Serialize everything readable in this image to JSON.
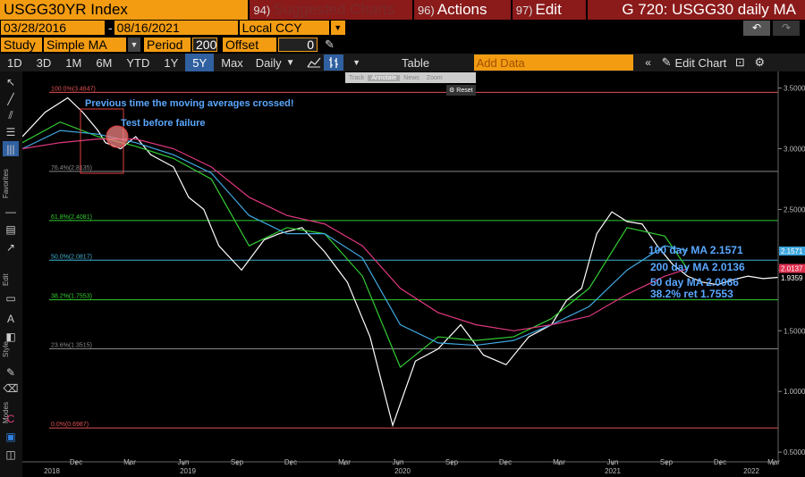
{
  "header": {
    "ticker": "USGG30YR Index",
    "suggested_num": "94)",
    "suggested_label": "Suggested Charts",
    "actions_num": "96)",
    "actions_label": "Actions",
    "edit_num": "97)",
    "edit_label": "Edit",
    "chart_title": "G 720: USGG30 daily MA"
  },
  "dates": {
    "start": "03/28/2016",
    "end": "08/16/2021",
    "currency": "Local CCY"
  },
  "study": {
    "label": "Study",
    "value": "Simple MA",
    "period_label": "Period",
    "period_value": "200",
    "offset_label": "Offset",
    "offset_value": "0"
  },
  "toolbar": {
    "ranges": [
      "1D",
      "3D",
      "1M",
      "6M",
      "YTD",
      "1Y",
      "5Y",
      "Max"
    ],
    "selected_range": "5Y",
    "frequency": "Daily",
    "table_label": "Table",
    "add_data_placeholder": "Add Data",
    "edit_chart_label": "Edit Chart"
  },
  "popup": {
    "track": "Track",
    "annotate": "Annotate",
    "news": "News",
    "zoom": "Zoom",
    "reset": "Reset"
  },
  "sidebar": {
    "favorites": "Favorites",
    "edit": "Edit",
    "style": "Style",
    "modes": "Modes"
  },
  "chart_data": {
    "type": "line",
    "x_tick_labels": [
      "Dec",
      "Mar",
      "Jun",
      "Sep",
      "Dec",
      "Mar",
      "Jun",
      "Sep",
      "Dec",
      "Mar",
      "Jun",
      "Sep",
      "Dec",
      "Mar"
    ],
    "year_labels": [
      "2018",
      "2019",
      "2020",
      "2021",
      "2022"
    ],
    "y_tick_labels": [
      "3.5000",
      "3.0000",
      "2.5000",
      "2.0000",
      "1.5000",
      "1.0000",
      "0.5000"
    ],
    "ylim": [
      0.42,
      3.6
    ],
    "fib_levels": [
      {
        "label": "100.0%(3.4647)",
        "value": 3.4647,
        "color": "#e05050"
      },
      {
        "label": "76.4%(2.8135)",
        "value": 2.8135,
        "color": "#888888"
      },
      {
        "label": "61.8%(2.4081)",
        "value": 2.4081,
        "color": "#33cc33"
      },
      {
        "label": "50.0%(2.0817)",
        "value": 2.0817,
        "color": "#40b0d0"
      },
      {
        "label": "38.2%(1.7553)",
        "value": 1.7553,
        "color": "#33cc33"
      },
      {
        "label": "23.6%(1.3515)",
        "value": 1.3515,
        "color": "#888888"
      },
      {
        "label": "0.0%(0.6987)",
        "value": 0.6987,
        "color": "#e05050"
      }
    ],
    "price_markers": [
      {
        "text": "2.1571",
        "value": 2.1571,
        "color": "#40a8e0"
      },
      {
        "text": "2.0137",
        "value": 2.0137,
        "color": "#e03050"
      },
      {
        "text": "1.9359",
        "value": 1.9359,
        "color": "#ffffff"
      }
    ],
    "annotations": [
      "Previous time the moving averages crossed!",
      "Test before failure",
      "100 day MA 2.1571",
      "200 day MA 2.0136",
      "50 day MA 2.0066",
      "38.2% ret 1.7553"
    ],
    "series": [
      {
        "name": "USGG30YR",
        "color": "#ffffff",
        "x": [
          0,
          3,
          6,
          8,
          10,
          11,
          13,
          15,
          17,
          20,
          22,
          24,
          26,
          29,
          32,
          34,
          37,
          40,
          43,
          46,
          49,
          52,
          55,
          58,
          61,
          64,
          67,
          70,
          72,
          74,
          76,
          78,
          80,
          82,
          84,
          86,
          88,
          90,
          92,
          94,
          96,
          98,
          100
        ],
        "y": [
          3.1,
          3.3,
          3.42,
          3.3,
          3.15,
          3.05,
          3.0,
          3.1,
          2.95,
          2.85,
          2.6,
          2.5,
          2.2,
          2.0,
          2.25,
          2.3,
          2.35,
          2.15,
          1.9,
          1.45,
          0.72,
          1.25,
          1.35,
          1.55,
          1.3,
          1.22,
          1.45,
          1.55,
          1.75,
          1.85,
          2.3,
          2.48,
          2.4,
          2.38,
          2.2,
          2.05,
          1.95,
          1.9,
          1.88,
          1.92,
          1.95,
          1.93,
          1.94
        ]
      },
      {
        "name": "50 day MA",
        "color": "#33cc33",
        "x": [
          0,
          5,
          10,
          15,
          20,
          25,
          30,
          35,
          40,
          45,
          50,
          55,
          60,
          65,
          70,
          75,
          80,
          85,
          88
        ],
        "y": [
          3.05,
          3.22,
          3.1,
          3.02,
          2.92,
          2.75,
          2.2,
          2.35,
          2.3,
          1.95,
          1.2,
          1.45,
          1.42,
          1.45,
          1.6,
          1.85,
          2.35,
          2.28,
          2.01
        ]
      },
      {
        "name": "100 day MA",
        "color": "#40a8e0",
        "x": [
          0,
          5,
          10,
          15,
          20,
          25,
          30,
          35,
          40,
          45,
          50,
          55,
          60,
          65,
          70,
          75,
          80,
          85,
          88
        ],
        "y": [
          3.0,
          3.15,
          3.12,
          3.05,
          2.95,
          2.8,
          2.45,
          2.3,
          2.3,
          2.1,
          1.55,
          1.4,
          1.38,
          1.42,
          1.55,
          1.7,
          2.0,
          2.2,
          2.16
        ]
      },
      {
        "name": "200 day MA",
        "color": "#e03880",
        "x": [
          0,
          5,
          10,
          15,
          20,
          25,
          30,
          35,
          40,
          45,
          50,
          55,
          60,
          65,
          70,
          75,
          80,
          85,
          88
        ],
        "y": [
          3.0,
          3.05,
          3.08,
          3.08,
          3.0,
          2.85,
          2.6,
          2.45,
          2.38,
          2.2,
          1.85,
          1.65,
          1.55,
          1.5,
          1.55,
          1.62,
          1.8,
          1.95,
          2.01
        ]
      }
    ]
  }
}
